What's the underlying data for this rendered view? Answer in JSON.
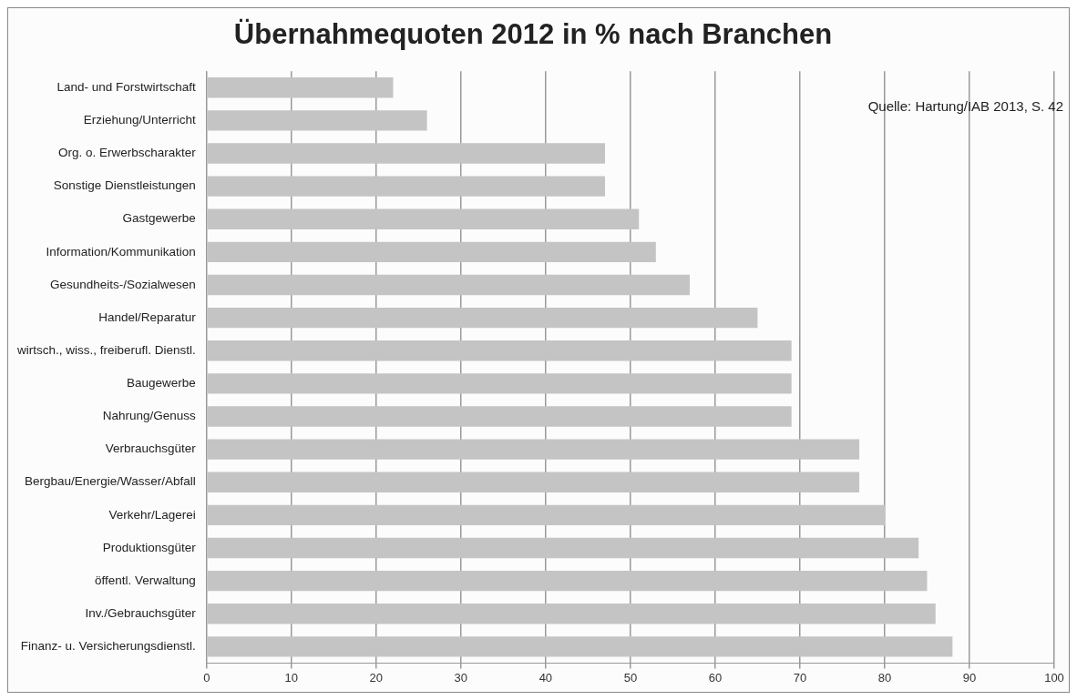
{
  "chart_data": {
    "type": "bar",
    "orientation": "horizontal",
    "title": "Übernahmequoten 2012 in % nach Branchen",
    "categories": [
      "Land- und Forstwirtschaft",
      "Erziehung/Unterricht",
      "Org. o. Erwerbscharakter",
      "Sonstige Dienstleistungen",
      "Gastgewerbe",
      "Information/Kommunikation",
      "Gesundheits-/Sozialwesen",
      "Handel/Reparatur",
      "wirtsch., wiss., freiberufl. Dienstl.",
      "Baugewerbe",
      "Nahrung/Genuss",
      "Verbrauchsgüter",
      "Bergbau/Energie/Wasser/Abfall",
      "Verkehr/Lagerei",
      "Produktionsgüter",
      "öffentl. Verwaltung",
      "Inv./Gebrauchsgüter",
      "Finanz- u. Versicherungsdienstl."
    ],
    "values": [
      22,
      26,
      47,
      47,
      51,
      53,
      57,
      65,
      69,
      69,
      69,
      77,
      77,
      80,
      84,
      85,
      86,
      88
    ],
    "color": "#c4c4c4",
    "xlim": [
      0,
      100
    ],
    "xticks": [
      0,
      10,
      20,
      30,
      40,
      50,
      60,
      70,
      80,
      90,
      100
    ],
    "grid": "x",
    "annotations": [
      "Quelle: Hartung/IAB 2013, S. 42"
    ]
  }
}
